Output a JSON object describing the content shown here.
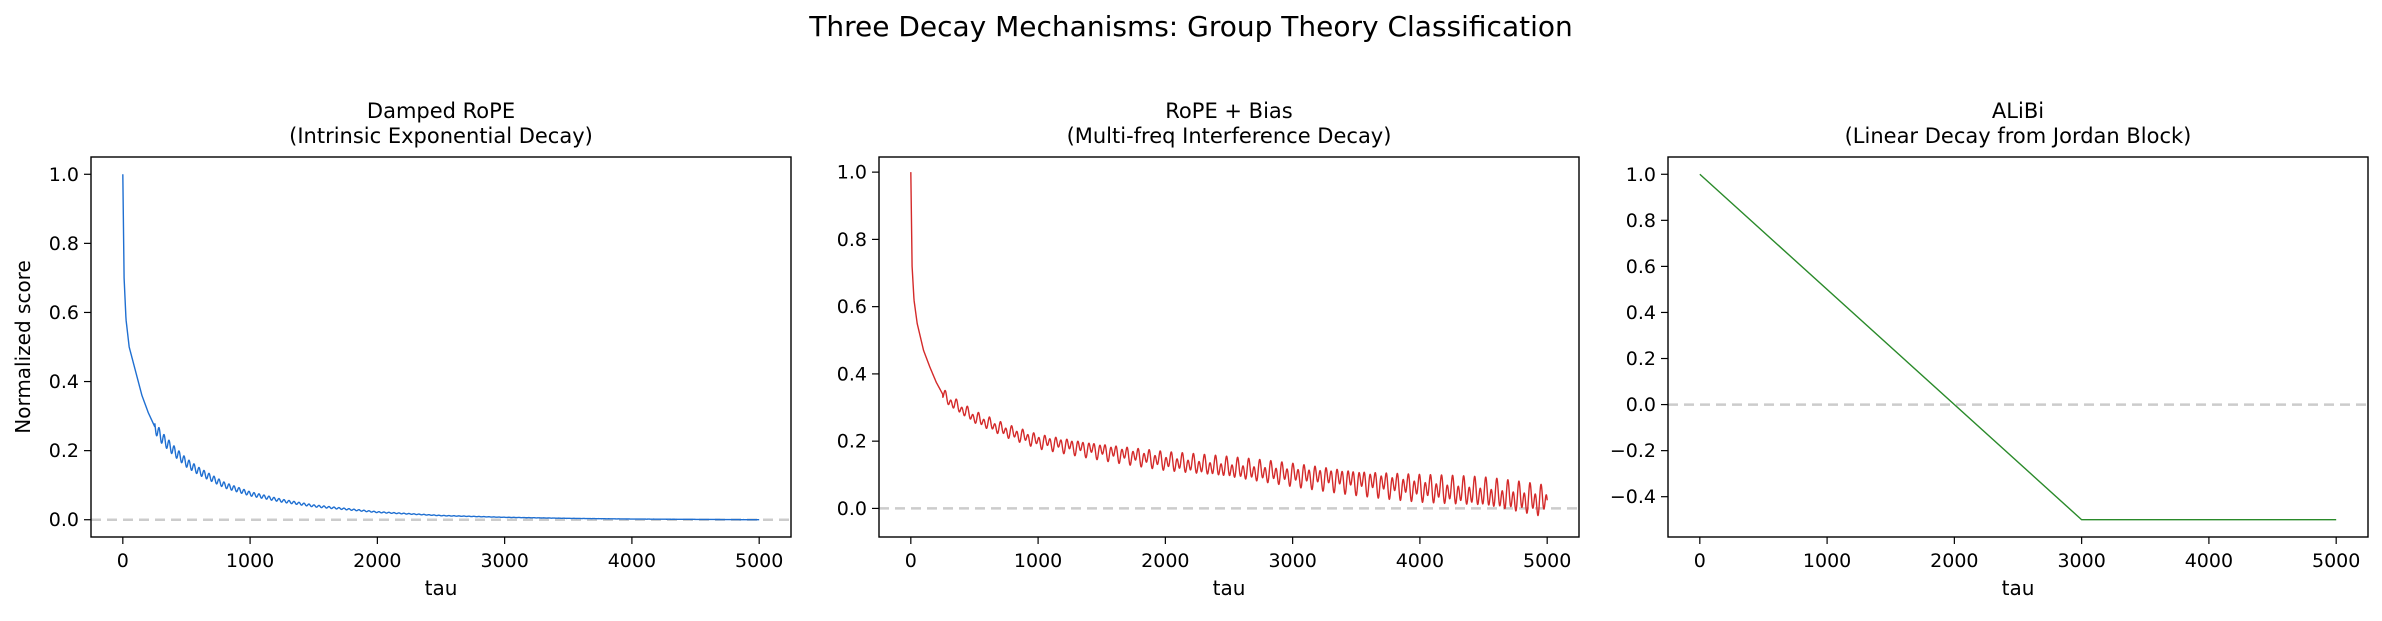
{
  "figure": {
    "suptitle": "Three Decay Mechanisms: Group Theory Classification"
  },
  "chart_data": [
    {
      "type": "line",
      "title": "Damped RoPE\n(Intrinsic Exponential Decay)",
      "title_lines": [
        "Damped RoPE",
        "(Intrinsic Exponential Decay)"
      ],
      "xlabel": "tau",
      "ylabel": "Normalized score",
      "xlim": [
        -250,
        5250
      ],
      "ylim": [
        -0.05,
        1.05
      ],
      "xticks": [
        0,
        1000,
        2000,
        3000,
        4000,
        5000
      ],
      "yticks": [
        0.0,
        0.2,
        0.4,
        0.6,
        0.8,
        1.0
      ],
      "grid": false,
      "reference_line": {
        "y": 0.0,
        "style": "dashed",
        "color": "#cccccc"
      },
      "series": [
        {
          "color": "#1f6fd1",
          "model": "damped",
          "points": [
            [
              0,
              1.0
            ],
            [
              10,
              0.7
            ],
            [
              25,
              0.58
            ],
            [
              50,
              0.5
            ],
            [
              100,
              0.43
            ],
            [
              150,
              0.36
            ],
            [
              200,
              0.31
            ],
            [
              250,
              0.27
            ],
            [
              300,
              0.24
            ],
            [
              400,
              0.2
            ],
            [
              500,
              0.165
            ],
            [
              600,
              0.14
            ],
            [
              800,
              0.1
            ],
            [
              1000,
              0.075
            ],
            [
              1250,
              0.055
            ],
            [
              1500,
              0.04
            ],
            [
              2000,
              0.022
            ],
            [
              2500,
              0.012
            ],
            [
              3000,
              0.007
            ],
            [
              3500,
              0.004
            ],
            [
              4000,
              0.002
            ],
            [
              4500,
              0.001
            ],
            [
              5000,
              0.0
            ]
          ]
        }
      ]
    },
    {
      "type": "line",
      "title": "RoPE + Bias\n(Multi-freq Interference Decay)",
      "title_lines": [
        "RoPE + Bias",
        "(Multi-freq Interference Decay)"
      ],
      "xlabel": "tau",
      "ylabel": "",
      "xlim": [
        -250,
        5250
      ],
      "ylim": [
        -0.085,
        1.045
      ],
      "xticks": [
        0,
        1000,
        2000,
        3000,
        4000,
        5000
      ],
      "yticks": [
        0.0,
        0.2,
        0.4,
        0.6,
        0.8,
        1.0
      ],
      "grid": false,
      "reference_line": {
        "y": 0.0,
        "style": "dashed",
        "color": "#cccccc"
      },
      "series": [
        {
          "color": "#d42a2a",
          "model": "interference",
          "points": [
            [
              0,
              1.0
            ],
            [
              10,
              0.72
            ],
            [
              25,
              0.62
            ],
            [
              50,
              0.55
            ],
            [
              100,
              0.47
            ],
            [
              150,
              0.42
            ],
            [
              200,
              0.375
            ],
            [
              250,
              0.34
            ],
            [
              300,
              0.32
            ],
            [
              500,
              0.27
            ],
            [
              750,
              0.23
            ],
            [
              1000,
              0.2
            ],
            [
              1500,
              0.17
            ],
            [
              2000,
              0.14
            ],
            [
              2500,
              0.12
            ],
            [
              3000,
              0.1
            ],
            [
              3500,
              0.08
            ],
            [
              4000,
              0.06
            ],
            [
              4500,
              0.045
            ],
            [
              5000,
              0.02
            ]
          ]
        }
      ]
    },
    {
      "type": "line",
      "title": "ALiBi\n(Linear Decay from Jordan Block)",
      "title_lines": [
        "ALiBi",
        "(Linear Decay from Jordan Block)"
      ],
      "xlabel": "tau",
      "ylabel": "",
      "xlim": [
        -250,
        5250
      ],
      "ylim": [
        -0.575,
        1.075
      ],
      "xticks": [
        0,
        1000,
        2000,
        3000,
        4000,
        5000
      ],
      "yticks": [
        -0.4,
        -0.2,
        0.0,
        0.2,
        0.4,
        0.6,
        0.8,
        1.0
      ],
      "grid": false,
      "reference_line": {
        "y": 0.0,
        "style": "dashed",
        "color": "#cccccc"
      },
      "series": [
        {
          "color": "#2a8a2a",
          "model": "plain",
          "points": [
            [
              0,
              1.0
            ],
            [
              3000,
              -0.5
            ],
            [
              5000,
              -0.5
            ]
          ]
        }
      ]
    }
  ]
}
